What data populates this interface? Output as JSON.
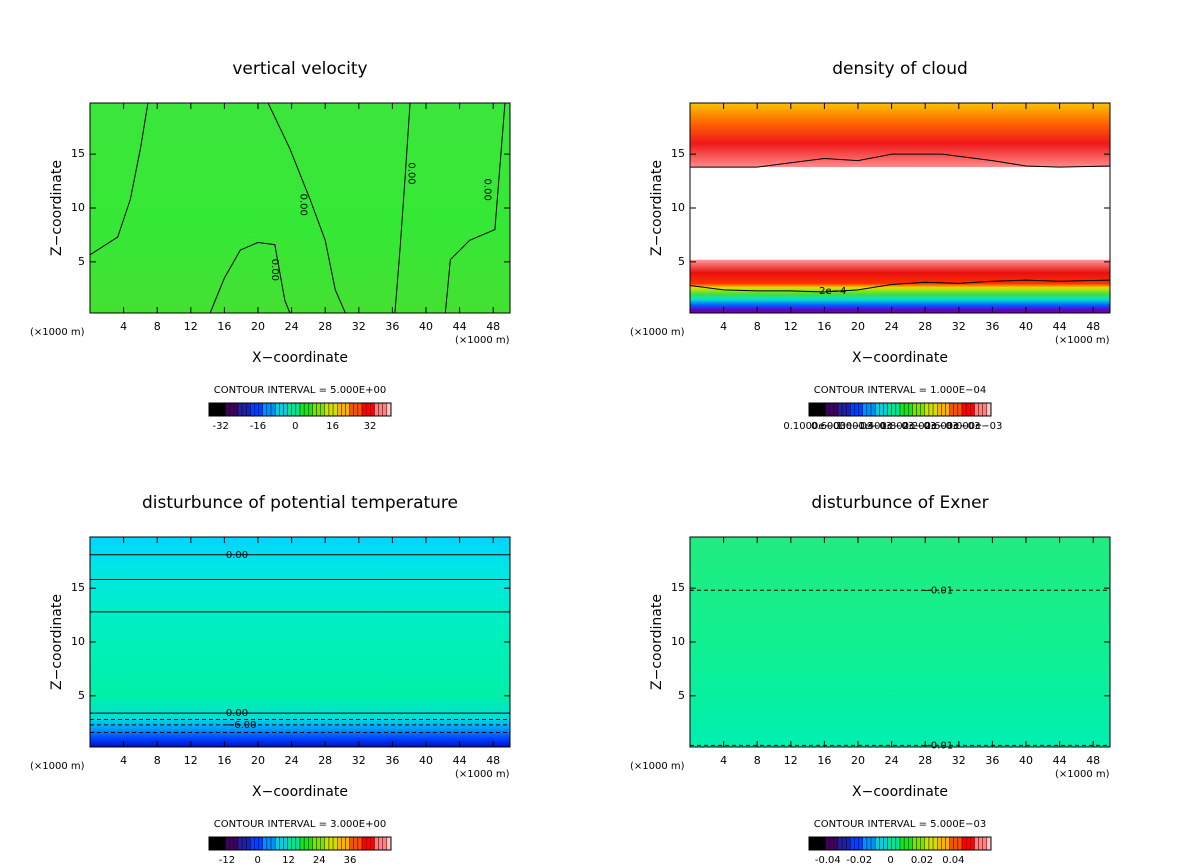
{
  "chart_data": [
    {
      "type": "contour",
      "title": "vertical velocity",
      "xlabel": "X−coordinate",
      "ylabel": "Z−coordinate",
      "unit_label": "(×1000 m)",
      "xlim": [
        0,
        50
      ],
      "ylim": [
        0.25,
        19.75
      ],
      "xticks": [
        4,
        8,
        12,
        16,
        20,
        24,
        28,
        32,
        36,
        40,
        44,
        48
      ],
      "yticks": [
        5,
        10,
        15
      ],
      "field_stops": [
        {
          "y": 19.75,
          "color": "#3ae63a"
        },
        {
          "y": 8,
          "color": "#36e836"
        },
        {
          "y": 0.25,
          "color": "#44e032"
        }
      ],
      "contours": [
        {
          "x": [
            0,
            3.3,
            4.8,
            6,
            6.9
          ],
          "y": [
            5.65,
            7.3,
            10.8,
            15.5,
            19.75
          ],
          "dashed": false
        },
        {
          "x": [
            21.2,
            23.8,
            26.2,
            28,
            29.2,
            30.4
          ],
          "y": [
            19.75,
            15.5,
            10.8,
            7,
            2.4,
            0.25
          ],
          "dashed": false
        },
        {
          "x": [
            38.1,
            37.5,
            36.9,
            36.3
          ],
          "y": [
            19.75,
            12.7,
            6.1,
            0.25
          ],
          "dashed": false
        },
        {
          "x": [
            49.4,
            48.2,
            45.2,
            42.9,
            42.3
          ],
          "y": [
            19.75,
            8,
            7,
            5.2,
            0.25
          ],
          "dashed": false
        },
        {
          "x": [
            14.3,
            16,
            17.9,
            20,
            22,
            23.2,
            23.8
          ],
          "y": [
            0.25,
            3.5,
            6.1,
            6.8,
            6.6,
            1.4,
            0.25
          ],
          "dashed": false
        }
      ],
      "contour_labels": [
        {
          "text": "0.00",
          "x": 25.4,
          "y": 10.3
        },
        {
          "text": "0.00",
          "x": 22,
          "y": 4.25
        },
        {
          "text": "0.00",
          "x": 38.3,
          "y": 13.2
        },
        {
          "text": "0.00",
          "x": 47.3,
          "y": 11.7
        }
      ],
      "vertical_labels": true,
      "interval": "CONTOUR INTERVAL = 5.000E+00",
      "clim": [
        -37,
        41
      ],
      "cticks": [
        -32,
        -16,
        0,
        16,
        32
      ]
    },
    {
      "type": "contour",
      "title": "density of cloud",
      "xlabel": "X−coordinate",
      "ylabel": "Z−coordinate",
      "unit_label": "(×1000 m)",
      "xlim": [
        0,
        50
      ],
      "ylim": [
        0.25,
        19.75
      ],
      "xticks": [
        4,
        8,
        12,
        16,
        20,
        24,
        28,
        32,
        36,
        40,
        44,
        48
      ],
      "yticks": [
        5,
        10,
        15
      ],
      "field_stops": [
        {
          "y": 19.75,
          "color": "#f8c400"
        },
        {
          "y": 18,
          "color": "#ff6a00"
        },
        {
          "y": 16,
          "color": "#f01818"
        },
        {
          "y": 13.8,
          "color": "#ff8a8a"
        },
        {
          "y": 13.79,
          "color": "#ffffff"
        },
        {
          "y": 5.2,
          "color": "#ffffff"
        },
        {
          "y": 5.19,
          "color": "#ff9a9a"
        },
        {
          "y": 4,
          "color": "#e81010"
        },
        {
          "y": 3,
          "color": "#ff3000"
        },
        {
          "y": 2.6,
          "color": "#e0e000"
        },
        {
          "y": 2,
          "color": "#40e040"
        },
        {
          "y": 1.5,
          "color": "#00e0d0"
        },
        {
          "y": 1,
          "color": "#0060ff"
        },
        {
          "y": 0.5,
          "color": "#6000c0"
        },
        {
          "y": 0.25,
          "color": "#8000a0"
        }
      ],
      "contours": [
        {
          "x": [
            0,
            8,
            12,
            16,
            20,
            24,
            30,
            36,
            40,
            44,
            50
          ],
          "y": [
            13.8,
            13.8,
            14.2,
            14.6,
            14.4,
            15,
            15,
            14.4,
            13.9,
            13.8,
            13.9
          ],
          "dashed": false
        },
        {
          "x": [
            0,
            4,
            8,
            12,
            16,
            20,
            24,
            28,
            32,
            36,
            40,
            44,
            50
          ],
          "y": [
            2.8,
            2.4,
            2.3,
            2.3,
            2.2,
            2.4,
            2.9,
            3.1,
            3,
            3.2,
            3.3,
            3.2,
            3.3
          ],
          "dashed": false
        }
      ],
      "contour_labels": [
        {
          "text": "2e−4",
          "x": 17,
          "y": 2.3
        }
      ],
      "vertical_labels": false,
      "interval": "CONTOUR INTERVAL = 1.000E−04",
      "clim": [
        0,
        0.0033
      ],
      "cticks": [
        {
          "value": 0.0001,
          "label": "0.1000e−03"
        },
        {
          "value": 0.0006,
          "label": "0.6000e−03"
        },
        {
          "value": 0.001,
          "label": "1.000e−03"
        },
        {
          "value": 0.0014,
          "label": "1.400e−03"
        },
        {
          "value": 0.0018,
          "label": "1.800e−03"
        },
        {
          "value": 0.0022,
          "label": "2.200e−03"
        },
        {
          "value": 0.0026,
          "label": "2.600e−03"
        },
        {
          "value": 0.003,
          "label": "3.000e−03"
        }
      ]
    },
    {
      "type": "contour",
      "title": "disturbunce of potential temperature",
      "xlabel": "X−coordinate",
      "ylabel": "Z−coordinate",
      "unit_label": "(×1000 m)",
      "xlim": [
        0,
        50
      ],
      "ylim": [
        0.25,
        19.75
      ],
      "xticks": [
        4,
        8,
        12,
        16,
        20,
        24,
        28,
        32,
        36,
        40,
        44,
        48
      ],
      "yticks": [
        5,
        10,
        15
      ],
      "field_stops": [
        {
          "y": 19.75,
          "color": "#00d4ff"
        },
        {
          "y": 17,
          "color": "#00e6e6"
        },
        {
          "y": 12,
          "color": "#00f0c4"
        },
        {
          "y": 5,
          "color": "#00f0a8"
        },
        {
          "y": 3,
          "color": "#00e0d4"
        },
        {
          "y": 2,
          "color": "#00a0ff"
        },
        {
          "y": 1,
          "color": "#0040ff"
        },
        {
          "y": 0.25,
          "color": "#0010c0"
        }
      ],
      "contours": [
        {
          "x": [
            0,
            50
          ],
          "y": [
            18.1,
            18.1
          ],
          "dashed": false
        },
        {
          "x": [
            0,
            50
          ],
          "y": [
            15.8,
            15.8
          ],
          "dashed": false
        },
        {
          "x": [
            0,
            50
          ],
          "y": [
            12.8,
            12.8
          ],
          "dashed": false
        },
        {
          "x": [
            0,
            50
          ],
          "y": [
            3.4,
            3.4
          ],
          "dashed": false
        },
        {
          "x": [
            0,
            50
          ],
          "y": [
            2.8,
            2.8
          ],
          "dashed": true
        },
        {
          "x": [
            0,
            50
          ],
          "y": [
            2.3,
            2.3
          ],
          "dashed": true
        },
        {
          "x": [
            0,
            50
          ],
          "y": [
            1.6,
            1.6
          ],
          "dashed": true
        }
      ],
      "contour_labels": [
        {
          "text": "0.00",
          "x": 17.5,
          "y": 18.1
        },
        {
          "text": "0.00",
          "x": 17.5,
          "y": 3.4
        },
        {
          "text": "−6.00",
          "x": 18,
          "y": 2.3
        }
      ],
      "vertical_labels": false,
      "interval": "CONTOUR INTERVAL = 3.000E+00",
      "clim": [
        -19,
        52
      ],
      "cticks": [
        -12,
        0,
        12,
        24,
        36
      ]
    },
    {
      "type": "contour",
      "title": "disturbunce of Exner",
      "xlabel": "X−coordinate",
      "ylabel": "Z−coordinate",
      "unit_label": "(×1000 m)",
      "xlim": [
        0,
        50
      ],
      "ylim": [
        0.25,
        19.75
      ],
      "xticks": [
        4,
        8,
        12,
        16,
        20,
        24,
        28,
        32,
        36,
        40,
        44,
        48
      ],
      "yticks": [
        5,
        10,
        15
      ],
      "field_stops": [
        {
          "y": 19.75,
          "color": "#22ec80"
        },
        {
          "y": 10,
          "color": "#10f090"
        },
        {
          "y": 0.25,
          "color": "#00f0b0"
        }
      ],
      "contours": [
        {
          "x": [
            0,
            50
          ],
          "y": [
            14.8,
            14.8
          ],
          "dashed": true
        },
        {
          "x": [
            0,
            50
          ],
          "y": [
            0.4,
            0.4
          ],
          "dashed": true
        }
      ],
      "contour_labels": [
        {
          "text": "−0.01",
          "x": 29.5,
          "y": 14.8
        },
        {
          "text": "−0.01",
          "x": 29.5,
          "y": 0.4
        }
      ],
      "vertical_labels": false,
      "interval": "CONTOUR INTERVAL = 5.000E−03",
      "clim": [
        -0.052,
        0.064
      ],
      "cticks": [
        -0.04,
        -0.02,
        0,
        0.02,
        0.04
      ]
    }
  ],
  "colorbar_colors": [
    "#000000",
    "#400060",
    "#2020a0",
    "#0040ff",
    "#0090ff",
    "#00d0e0",
    "#00e890",
    "#20e020",
    "#80e000",
    "#d0e000",
    "#ffb000",
    "#ff5000",
    "#ff0000",
    "#ff8080",
    "#ffc8c8"
  ]
}
